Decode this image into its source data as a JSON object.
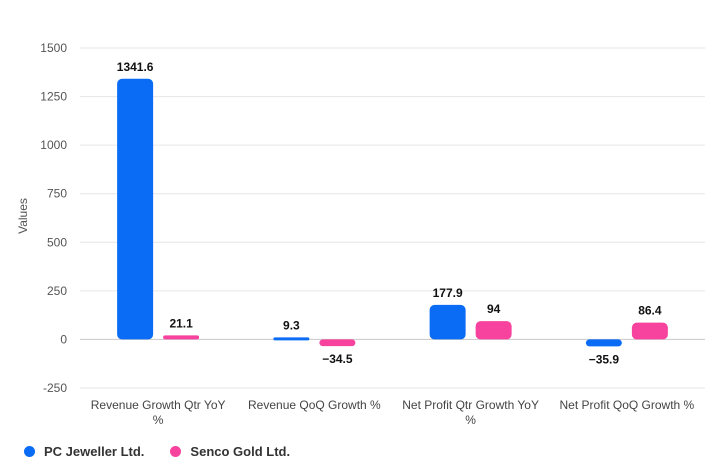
{
  "chart_data": {
    "type": "bar",
    "ylabel": "Values",
    "xlabel": "",
    "ylim": [
      -250,
      1500
    ],
    "yticks": [
      -250,
      0,
      250,
      500,
      750,
      1000,
      1250,
      1500
    ],
    "categories": [
      [
        "Revenue Growth Qtr YoY",
        "%"
      ],
      [
        "Revenue QoQ Growth %"
      ],
      [
        "Net Profit Qtr Growth YoY",
        "%"
      ],
      [
        "Net Profit QoQ Growth %"
      ]
    ],
    "series": [
      {
        "name": "PC Jeweller Ltd.",
        "color": "#0a6cf5",
        "values": [
          1341.6,
          9.3,
          177.9,
          -35.9
        ],
        "labels": [
          "1341.6",
          "9.3",
          "177.9",
          "−35.9"
        ]
      },
      {
        "name": "Senco Gold Ltd.",
        "color": "#f7439e",
        "values": [
          21.1,
          -34.5,
          94,
          86.4
        ],
        "labels": [
          "21.1",
          "−34.5",
          "94",
          "86.4"
        ]
      }
    ],
    "grid": true,
    "legend_position": "bottom-left"
  }
}
